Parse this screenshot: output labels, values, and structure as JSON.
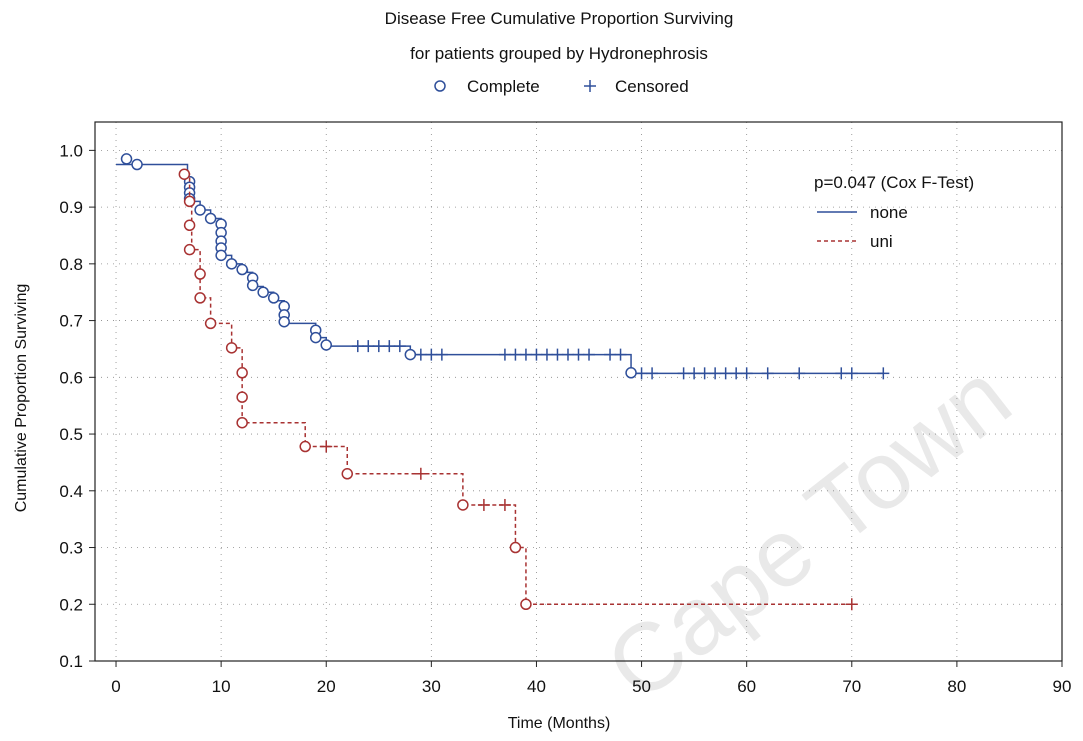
{
  "chart_data": {
    "type": "line",
    "title": "Disease Free Cumulative Proportion Surviving",
    "subtitle": "for patients grouped by Hydronephrosis",
    "marker_legend": {
      "complete": "Complete",
      "censored": "Censored"
    },
    "xlabel": "Time (Months)",
    "ylabel": "Cumulative Proportion Surviving",
    "xlim": [
      -2,
      90
    ],
    "ylim": [
      0.1,
      1.05
    ],
    "xticks": [
      "0",
      "10",
      "20",
      "30",
      "40",
      "50",
      "60",
      "70",
      "80",
      "90"
    ],
    "yticks": [
      "0.1",
      "0.2",
      "0.3",
      "0.4",
      "0.5",
      "0.6",
      "0.7",
      "0.8",
      "0.9",
      "1.0"
    ],
    "grid": "dotted",
    "legend_position": "top-right",
    "legend_note": "p=0.047 (Cox F-Test)",
    "watermark": "Cape Town",
    "series": [
      {
        "name": "none",
        "color": "#2f4f9a",
        "line": "solid",
        "steps": [
          [
            0,
            0.975
          ],
          [
            6.8,
            0.94
          ],
          [
            7.2,
            0.91
          ],
          [
            8,
            0.895
          ],
          [
            9,
            0.88
          ],
          [
            10,
            0.815
          ],
          [
            11,
            0.8
          ],
          [
            12,
            0.79
          ],
          [
            12.5,
            0.785
          ],
          [
            13,
            0.76
          ],
          [
            14,
            0.75
          ],
          [
            15,
            0.735
          ],
          [
            16,
            0.695
          ],
          [
            19,
            0.67
          ],
          [
            20,
            0.655
          ],
          [
            28,
            0.64
          ],
          [
            49,
            0.607
          ],
          [
            73,
            0.607
          ]
        ],
        "complete": [
          [
            1,
            0.985
          ],
          [
            2,
            0.975
          ],
          [
            7,
            0.945
          ],
          [
            7,
            0.935
          ],
          [
            7,
            0.925
          ],
          [
            7,
            0.915
          ],
          [
            8,
            0.895
          ],
          [
            9,
            0.88
          ],
          [
            10,
            0.87
          ],
          [
            10,
            0.855
          ],
          [
            10,
            0.84
          ],
          [
            10,
            0.828
          ],
          [
            10,
            0.815
          ],
          [
            11,
            0.8
          ],
          [
            12,
            0.79
          ],
          [
            13,
            0.775
          ],
          [
            13,
            0.762
          ],
          [
            14,
            0.75
          ],
          [
            15,
            0.74
          ],
          [
            16,
            0.725
          ],
          [
            16,
            0.71
          ],
          [
            16,
            0.698
          ],
          [
            19,
            0.683
          ],
          [
            19,
            0.67
          ],
          [
            20,
            0.657
          ],
          [
            28,
            0.64
          ],
          [
            49,
            0.608
          ]
        ],
        "censored": [
          23,
          24,
          25,
          26,
          27,
          29,
          30,
          31,
          37,
          38,
          39,
          40,
          41,
          42,
          43,
          44,
          45,
          47,
          48,
          50,
          51,
          54,
          55,
          56,
          57,
          58,
          59,
          60,
          62,
          65,
          69,
          70,
          73
        ]
      },
      {
        "name": "uni",
        "color": "#a83232",
        "line": "dashed",
        "steps": [
          [
            6,
            0.958
          ],
          [
            7,
            0.91
          ],
          [
            7.2,
            0.825
          ],
          [
            8,
            0.74
          ],
          [
            9,
            0.695
          ],
          [
            11,
            0.652
          ],
          [
            12,
            0.52
          ],
          [
            18,
            0.478
          ],
          [
            22,
            0.43
          ],
          [
            33,
            0.375
          ],
          [
            38,
            0.3
          ],
          [
            39,
            0.2
          ],
          [
            70,
            0.2
          ]
        ],
        "complete": [
          [
            6.5,
            0.958
          ],
          [
            7,
            0.91
          ],
          [
            7,
            0.868
          ],
          [
            7,
            0.825
          ],
          [
            8,
            0.782
          ],
          [
            8,
            0.74
          ],
          [
            9,
            0.695
          ],
          [
            11,
            0.652
          ],
          [
            12,
            0.608
          ],
          [
            12,
            0.565
          ],
          [
            12,
            0.52
          ],
          [
            18,
            0.478
          ],
          [
            22,
            0.43
          ],
          [
            33,
            0.375
          ],
          [
            38,
            0.3
          ],
          [
            39,
            0.2
          ]
        ],
        "censored": [
          20,
          29,
          35,
          37,
          70
        ]
      }
    ]
  }
}
